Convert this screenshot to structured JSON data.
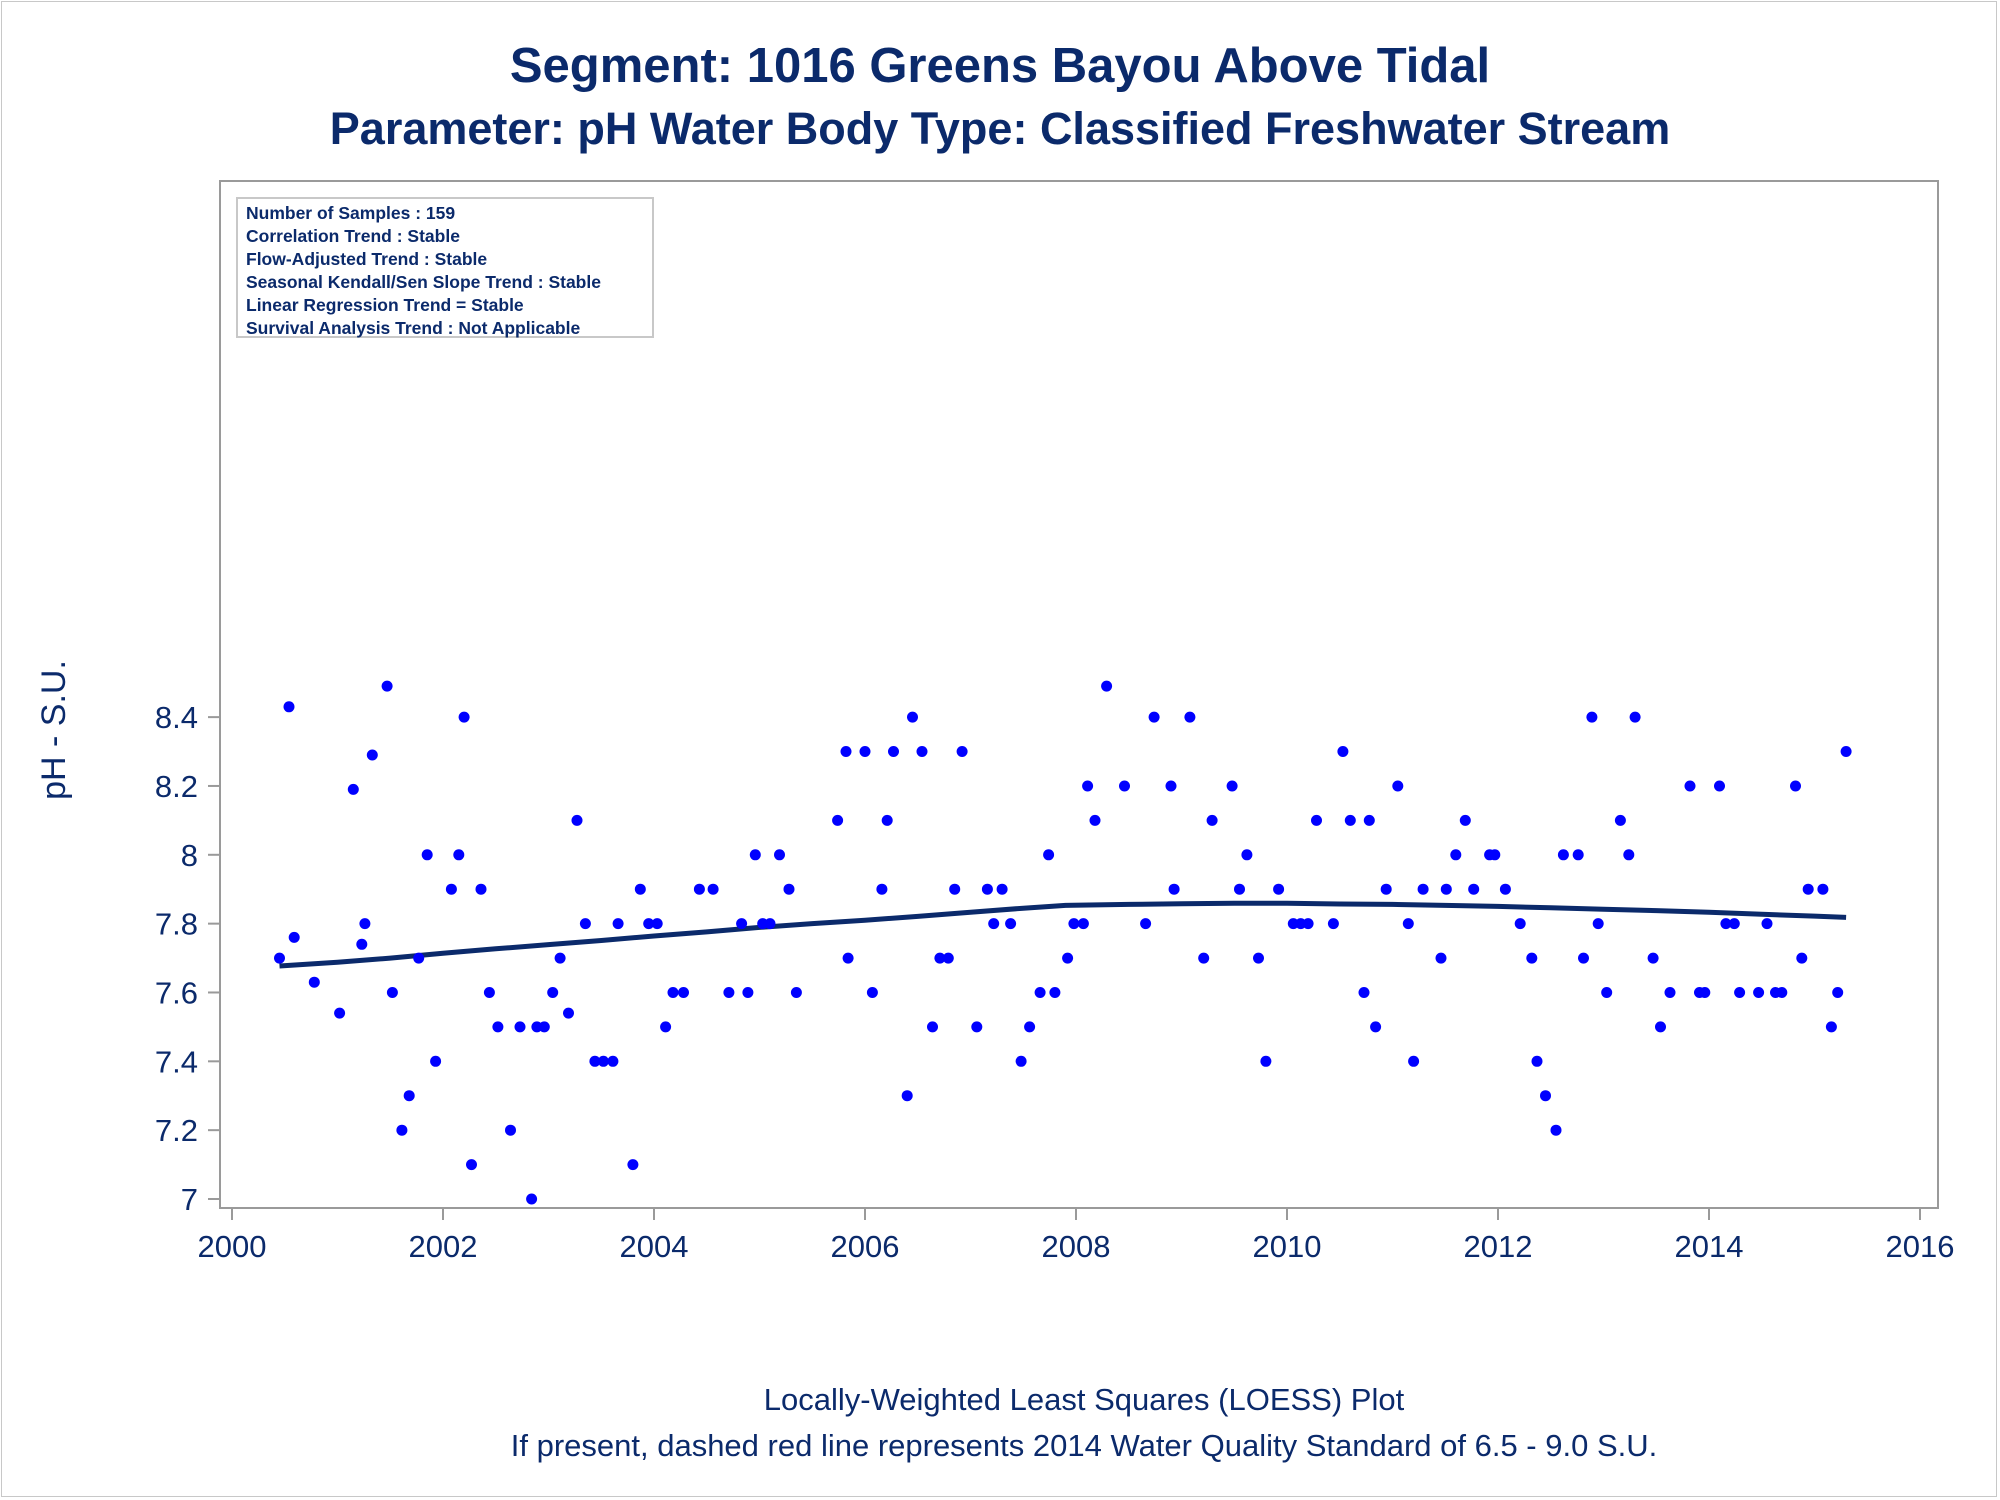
{
  "title_line1": "Segment: 1016  Greens Bayou Above Tidal",
  "title_line2": "Parameter: pH   Water Body Type: Classified Freshwater Stream",
  "footer_line1": "Locally-Weighted Least Squares (LOESS) Plot",
  "footer_line2": "If present, dashed red line represents 2014 Water Quality Standard of 6.5 - 9.0 S.U.",
  "legend_box": [
    "Number of Samples : 159",
    "Correlation Trend : Stable",
    "Flow-Adjusted Trend : Stable",
    "Seasonal Kendall/Sen Slope Trend : Stable",
    "Linear Regression Trend = Stable",
    "Survival Analysis Trend : Not Applicable"
  ],
  "colors": {
    "points": "#0000ff",
    "loess": "#0b2a6b",
    "text": "#0b2a6b",
    "axis": "#9a9a9a"
  },
  "chart_data": {
    "type": "scatter",
    "title": "Segment: 1016  Greens Bayou Above Tidal",
    "subtitle": "Parameter: pH   Water Body Type: Classified Freshwater Stream",
    "xlabel": "",
    "ylabel": "pH - S.U.",
    "xlim": [
      2000,
      2016
    ],
    "ylim": [
      6.97,
      8.52
    ],
    "xticks": [
      "2000",
      "2002",
      "2004",
      "2006",
      "2008",
      "2010",
      "2012",
      "2014",
      "2016"
    ],
    "yticks": [
      "7",
      "7.2",
      "7.4",
      "7.6",
      "7.8",
      "8",
      "8.2",
      "8.4"
    ],
    "grid": false,
    "series": [
      {
        "kind": "points",
        "points": [
          [
            2000.45,
            7.7
          ],
          [
            2000.54,
            8.43
          ],
          [
            2000.59,
            7.76
          ],
          [
            2000.78,
            7.63
          ],
          [
            2001.02,
            7.54
          ],
          [
            2001.15,
            8.19
          ],
          [
            2001.23,
            7.74
          ],
          [
            2001.26,
            7.8
          ],
          [
            2001.33,
            8.29
          ],
          [
            2001.47,
            8.49
          ],
          [
            2001.52,
            7.6
          ],
          [
            2001.61,
            7.2
          ],
          [
            2001.68,
            7.3
          ],
          [
            2001.77,
            7.7
          ],
          [
            2001.85,
            8.0
          ],
          [
            2001.93,
            7.4
          ],
          [
            2002.08,
            7.9
          ],
          [
            2002.15,
            8.0
          ],
          [
            2002.2,
            8.4
          ],
          [
            2002.27,
            7.1
          ],
          [
            2002.36,
            7.9
          ],
          [
            2002.44,
            7.6
          ],
          [
            2002.52,
            7.5
          ],
          [
            2002.64,
            7.2
          ],
          [
            2002.73,
            7.5
          ],
          [
            2002.84,
            7.0
          ],
          [
            2002.89,
            7.5
          ],
          [
            2002.96,
            7.5
          ],
          [
            2003.04,
            7.6
          ],
          [
            2003.11,
            7.7
          ],
          [
            2003.19,
            7.54
          ],
          [
            2003.27,
            8.1
          ],
          [
            2003.35,
            7.8
          ],
          [
            2003.44,
            7.4
          ],
          [
            2003.52,
            7.4
          ],
          [
            2003.61,
            7.4
          ],
          [
            2003.66,
            7.8
          ],
          [
            2003.8,
            7.1
          ],
          [
            2003.87,
            7.9
          ],
          [
            2003.95,
            7.8
          ],
          [
            2004.03,
            7.8
          ],
          [
            2004.11,
            7.5
          ],
          [
            2004.18,
            7.6
          ],
          [
            2004.28,
            7.6
          ],
          [
            2004.43,
            7.9
          ],
          [
            2004.56,
            7.9
          ],
          [
            2004.71,
            7.6
          ],
          [
            2004.83,
            7.8
          ],
          [
            2004.89,
            7.6
          ],
          [
            2004.96,
            8.0
          ],
          [
            2005.03,
            7.8
          ],
          [
            2005.1,
            7.8
          ],
          [
            2005.19,
            8.0
          ],
          [
            2005.28,
            7.9
          ],
          [
            2005.35,
            7.6
          ],
          [
            2005.74,
            8.1
          ],
          [
            2005.82,
            8.3
          ],
          [
            2005.84,
            7.7
          ],
          [
            2006.0,
            8.3
          ],
          [
            2006.07,
            7.6
          ],
          [
            2006.16,
            7.9
          ],
          [
            2006.21,
            8.1
          ],
          [
            2006.27,
            8.3
          ],
          [
            2006.4,
            7.3
          ],
          [
            2006.45,
            8.4
          ],
          [
            2006.54,
            8.3
          ],
          [
            2006.64,
            7.5
          ],
          [
            2006.71,
            7.7
          ],
          [
            2006.79,
            7.7
          ],
          [
            2006.85,
            7.9
          ],
          [
            2006.92,
            8.3
          ],
          [
            2007.06,
            7.5
          ],
          [
            2007.16,
            7.9
          ],
          [
            2007.22,
            7.8
          ],
          [
            2007.3,
            7.9
          ],
          [
            2007.38,
            7.8
          ],
          [
            2007.48,
            7.4
          ],
          [
            2007.56,
            7.5
          ],
          [
            2007.66,
            7.6
          ],
          [
            2007.74,
            8.0
          ],
          [
            2007.8,
            7.6
          ],
          [
            2007.92,
            7.7
          ],
          [
            2007.98,
            7.8
          ],
          [
            2008.07,
            7.8
          ],
          [
            2008.11,
            8.2
          ],
          [
            2008.18,
            8.1
          ],
          [
            2008.29,
            8.49
          ],
          [
            2008.46,
            8.2
          ],
          [
            2008.66,
            7.8
          ],
          [
            2008.74,
            8.4
          ],
          [
            2008.9,
            8.2
          ],
          [
            2008.93,
            7.9
          ],
          [
            2009.08,
            8.4
          ],
          [
            2009.21,
            7.7
          ],
          [
            2009.29,
            8.1
          ],
          [
            2009.48,
            8.2
          ],
          [
            2009.55,
            7.9
          ],
          [
            2009.62,
            8.0
          ],
          [
            2009.73,
            7.7
          ],
          [
            2009.8,
            7.4
          ],
          [
            2009.92,
            7.9
          ],
          [
            2010.06,
            7.8
          ],
          [
            2010.13,
            7.8
          ],
          [
            2010.2,
            7.8
          ],
          [
            2010.28,
            8.1
          ],
          [
            2010.44,
            7.8
          ],
          [
            2010.53,
            8.3
          ],
          [
            2010.6,
            8.1
          ],
          [
            2010.73,
            7.6
          ],
          [
            2010.78,
            8.1
          ],
          [
            2010.84,
            7.5
          ],
          [
            2010.94,
            7.9
          ],
          [
            2011.05,
            8.2
          ],
          [
            2011.15,
            7.8
          ],
          [
            2011.2,
            7.4
          ],
          [
            2011.29,
            7.9
          ],
          [
            2011.46,
            7.7
          ],
          [
            2011.51,
            7.9
          ],
          [
            2011.6,
            8.0
          ],
          [
            2011.69,
            8.1
          ],
          [
            2011.77,
            7.9
          ],
          [
            2011.92,
            8.0
          ],
          [
            2011.97,
            8.0
          ],
          [
            2012.07,
            7.9
          ],
          [
            2012.21,
            7.8
          ],
          [
            2012.32,
            7.7
          ],
          [
            2012.37,
            7.4
          ],
          [
            2012.45,
            7.3
          ],
          [
            2012.55,
            7.2
          ],
          [
            2012.62,
            8.0
          ],
          [
            2012.76,
            8.0
          ],
          [
            2012.81,
            7.7
          ],
          [
            2012.89,
            8.4
          ],
          [
            2012.95,
            7.8
          ],
          [
            2013.03,
            7.6
          ],
          [
            2013.16,
            8.1
          ],
          [
            2013.24,
            8.0
          ],
          [
            2013.3,
            8.4
          ],
          [
            2013.47,
            7.7
          ],
          [
            2013.54,
            7.5
          ],
          [
            2013.63,
            7.6
          ],
          [
            2013.82,
            8.2
          ],
          [
            2013.91,
            7.6
          ],
          [
            2013.96,
            7.6
          ],
          [
            2014.1,
            8.2
          ],
          [
            2014.16,
            7.8
          ],
          [
            2014.24,
            7.8
          ],
          [
            2014.29,
            7.6
          ],
          [
            2014.47,
            7.6
          ],
          [
            2014.55,
            7.8
          ],
          [
            2014.63,
            7.6
          ],
          [
            2014.69,
            7.6
          ],
          [
            2014.82,
            8.2
          ],
          [
            2014.88,
            7.7
          ],
          [
            2014.94,
            7.9
          ],
          [
            2015.08,
            7.9
          ],
          [
            2015.16,
            7.5
          ],
          [
            2015.22,
            7.6
          ],
          [
            2015.3,
            8.3
          ]
        ]
      },
      {
        "kind": "loess",
        "points": [
          [
            2000.45,
            7.677
          ],
          [
            2001.0,
            7.688
          ],
          [
            2001.5,
            7.7
          ],
          [
            2002.0,
            7.714
          ],
          [
            2002.5,
            7.727
          ],
          [
            2003.0,
            7.739
          ],
          [
            2003.5,
            7.751
          ],
          [
            2004.0,
            7.764
          ],
          [
            2004.5,
            7.776
          ],
          [
            2005.0,
            7.789
          ],
          [
            2005.5,
            7.8
          ],
          [
            2006.0,
            7.81
          ],
          [
            2006.5,
            7.821
          ],
          [
            2007.0,
            7.833
          ],
          [
            2007.5,
            7.845
          ],
          [
            2007.9,
            7.853
          ],
          [
            2008.5,
            7.856
          ],
          [
            2009.0,
            7.858
          ],
          [
            2009.5,
            7.859
          ],
          [
            2010.0,
            7.859
          ],
          [
            2010.5,
            7.857
          ],
          [
            2011.0,
            7.856
          ],
          [
            2011.5,
            7.853
          ],
          [
            2012.0,
            7.85
          ],
          [
            2012.5,
            7.846
          ],
          [
            2013.0,
            7.842
          ],
          [
            2013.5,
            7.838
          ],
          [
            2014.0,
            7.833
          ],
          [
            2014.5,
            7.827
          ],
          [
            2015.0,
            7.822
          ],
          [
            2015.3,
            7.818
          ]
        ]
      }
    ]
  }
}
